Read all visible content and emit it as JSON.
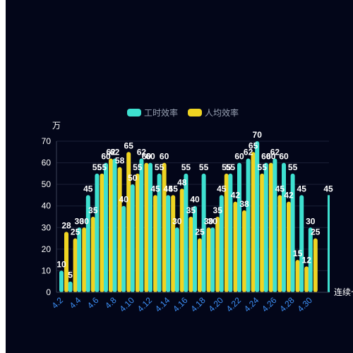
{
  "chart_data": {
    "type": "bar",
    "ylabel": "万",
    "xlabel": "连续七日",
    "ylim": [
      0,
      70
    ],
    "yticks": [
      0,
      10,
      20,
      30,
      40,
      50,
      60,
      70
    ],
    "categories": [
      "4.2",
      "4.3",
      "4.4",
      "4.5",
      "4.6",
      "4.7",
      "4.8",
      "4.9",
      "4.10",
      "4.11",
      "4.12",
      "4.13",
      "4.14",
      "4.15",
      "4.16",
      "4.17",
      "4.18",
      "4.19",
      "4.20",
      "4.21",
      "4.22",
      "4.23",
      "4.24",
      "4.25",
      "4.26",
      "4.27",
      "4.28",
      "4.29",
      "4.30"
    ],
    "xtick_labels": [
      "4.2",
      "4.4",
      "4.6",
      "4.8",
      "4.10",
      "4.12",
      "4.14",
      "4.16",
      "4.18",
      "4.20",
      "4.22",
      "4.24",
      "4.26",
      "4.28",
      "4.30"
    ],
    "series": [
      {
        "name": "工时效率",
        "color": "#3ee0d0",
        "values": [
          10,
          5,
          30,
          45,
          55,
          60,
          62,
          40,
          50,
          62,
          60,
          55,
          45,
          30,
          55,
          40,
          55,
          30,
          45,
          55,
          60,
          62,
          70,
          60,
          62,
          60,
          55,
          45,
          30
        ]
      },
      {
        "name": "人均效率",
        "color": "#efd422",
        "values": [
          28,
          25,
          30,
          35,
          55,
          62,
          58,
          65,
          55,
          60,
          45,
          60,
          45,
          48,
          35,
          25,
          30,
          35,
          55,
          42,
          38,
          65,
          55,
          60,
          45,
          42,
          15,
          12,
          25
        ]
      }
    ],
    "trailing": {
      "name": "工时效率",
      "value": 45
    }
  }
}
